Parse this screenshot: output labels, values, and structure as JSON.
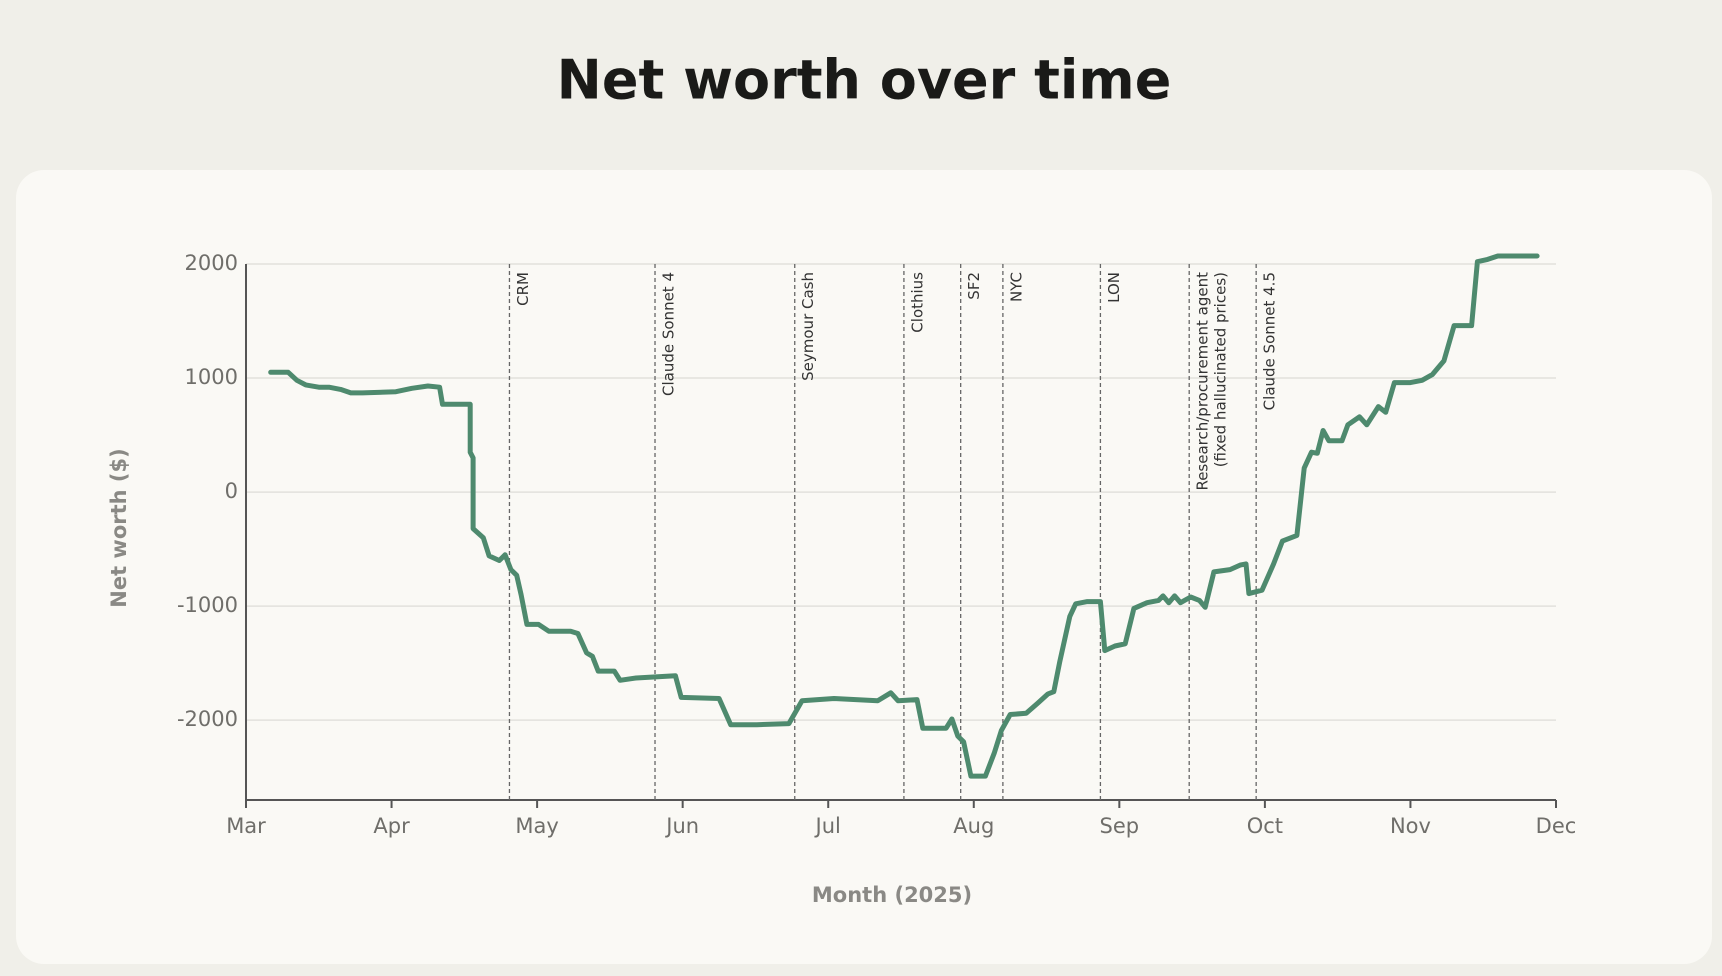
{
  "chart_data": {
    "type": "line",
    "title": "Net worth over time",
    "xlabel": "Month (2025)",
    "ylabel": "Net worth ($)",
    "x": [
      3.17,
      3.29,
      3.35,
      3.41,
      3.5,
      3.57,
      3.65,
      3.72,
      3.8,
      4.03,
      4.14,
      4.25,
      4.33,
      4.35,
      4.54,
      4.54,
      4.56,
      4.56,
      4.63,
      4.67,
      4.74,
      4.78,
      4.82,
      4.86,
      4.89,
      4.93,
      5.01,
      5.08,
      5.23,
      5.28,
      5.34,
      5.38,
      5.42,
      5.53,
      5.57,
      5.68,
      5.95,
      5.99,
      6.25,
      6.33,
      6.51,
      6.73,
      6.82,
      7.04,
      7.34,
      7.43,
      7.48,
      7.61,
      7.65,
      7.81,
      7.85,
      7.89,
      7.93,
      7.98,
      8.08,
      8.14,
      8.19,
      8.25,
      8.36,
      8.44,
      8.51,
      8.55,
      8.59,
      8.66,
      8.7,
      8.78,
      8.87,
      8.9,
      8.97,
      9.04,
      9.1,
      9.19,
      9.27,
      9.3,
      9.34,
      9.38,
      9.42,
      9.49,
      9.55,
      9.59,
      9.65,
      9.76,
      9.83,
      9.87,
      9.89,
      9.98,
      10.06,
      10.12,
      10.22,
      10.27,
      10.32,
      10.36,
      10.4,
      10.44,
      10.53,
      10.57,
      10.65,
      10.7,
      10.78,
      10.83,
      10.89,
      11.0,
      11.08,
      11.15,
      11.23,
      11.3,
      11.42,
      11.46,
      11.53,
      11.6,
      11.87
    ],
    "series": [
      {
        "color": "#4e8a6e",
        "values": [
          1050,
          1050,
          980,
          940,
          920,
          920,
          900,
          870,
          870,
          880,
          910,
          930,
          920,
          770,
          770,
          350,
          300,
          -320,
          -400,
          -560,
          -600,
          -550,
          -680,
          -730,
          -900,
          -1160,
          -1160,
          -1220,
          -1220,
          -1240,
          -1410,
          -1440,
          -1570,
          -1570,
          -1650,
          -1630,
          -1610,
          -1800,
          -1810,
          -2040,
          -2040,
          -2030,
          -1830,
          -1810,
          -1830,
          -1760,
          -1830,
          -1820,
          -2070,
          -2070,
          -1990,
          -2140,
          -2190,
          -2490,
          -2490,
          -2290,
          -2090,
          -1950,
          -1940,
          -1850,
          -1770,
          -1750,
          -1490,
          -1090,
          -980,
          -960,
          -960,
          -1390,
          -1350,
          -1330,
          -1020,
          -970,
          -950,
          -910,
          -970,
          -910,
          -970,
          -920,
          -950,
          -1010,
          -700,
          -680,
          -640,
          -630,
          -890,
          -860,
          -630,
          -430,
          -380,
          210,
          350,
          340,
          540,
          450,
          450,
          590,
          660,
          590,
          750,
          700,
          960,
          960,
          980,
          1030,
          1150,
          1460,
          1460,
          2020,
          2040,
          2070,
          2070
        ]
      }
    ],
    "annotations": [
      {
        "x": 4.81,
        "label": [
          "CRM"
        ]
      },
      {
        "x": 5.81,
        "label": [
          "Claude Sonnet 4"
        ]
      },
      {
        "x": 6.77,
        "label": [
          "Seymour Cash"
        ]
      },
      {
        "x": 7.52,
        "label": [
          "Clothius"
        ]
      },
      {
        "x": 7.91,
        "label": [
          "SF2"
        ]
      },
      {
        "x": 8.2,
        "label": [
          "NYC"
        ]
      },
      {
        "x": 8.87,
        "label": [
          "LON"
        ]
      },
      {
        "x": 9.48,
        "label": [
          "Research/procurement agent",
          "(fixed hallucinated prices)"
        ]
      },
      {
        "x": 9.94,
        "label": [
          "Claude Sonnet 4.5"
        ]
      }
    ],
    "xlim": [
      3,
      12
    ],
    "xticks": [
      {
        "value": 3,
        "label": "Mar"
      },
      {
        "value": 4,
        "label": "Apr"
      },
      {
        "value": 5,
        "label": "May"
      },
      {
        "value": 6,
        "label": "Jun"
      },
      {
        "value": 7,
        "label": "Jul"
      },
      {
        "value": 8,
        "label": "Aug"
      },
      {
        "value": 9,
        "label": "Sep"
      },
      {
        "value": 10,
        "label": "Oct"
      },
      {
        "value": 11,
        "label": "Nov"
      },
      {
        "value": 12,
        "label": "Dec"
      }
    ],
    "ylim": [
      -2700,
      2000
    ],
    "yticks": [
      -2000,
      -1000,
      0,
      1000,
      2000
    ],
    "grid": true
  }
}
